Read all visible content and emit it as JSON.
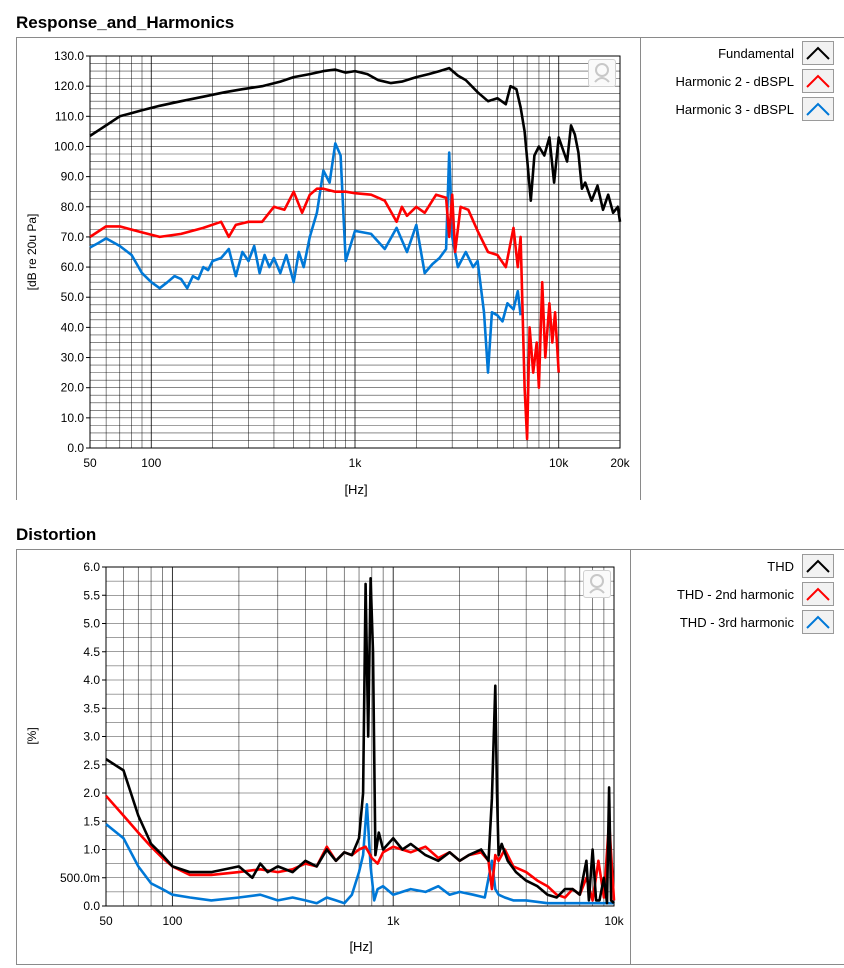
{
  "charts": {
    "response": {
      "title": "Response_and_Harmonics",
      "xlabel": "[Hz]",
      "ylabel": "[dB re 20u Pa]",
      "x_ticks": [
        "50",
        "100",
        "1k",
        "10k",
        "20k"
      ],
      "y_ticks": [
        "0.0",
        "10.0",
        "20.0",
        "30.0",
        "40.0",
        "50.0",
        "60.0",
        "70.0",
        "80.0",
        "90.0",
        "100.0",
        "110.0",
        "120.0",
        "130.0"
      ],
      "legend": [
        {
          "label": "Fundamental",
          "color": "#000000"
        },
        {
          "label": "Harmonic 2 - dBSPL",
          "color": "#ff0000"
        },
        {
          "label": "Harmonic 3 - dBSPL",
          "color": "#0078d7"
        }
      ]
    },
    "distortion": {
      "title": "Distortion",
      "xlabel": "[Hz]",
      "ylabel": "[%]",
      "x_ticks": [
        "50",
        "100",
        "1k",
        "10k"
      ],
      "y_ticks": [
        "0.0",
        "500.0m",
        "1.0",
        "1.5",
        "2.0",
        "2.5",
        "3.0",
        "3.5",
        "4.0",
        "4.5",
        "5.0",
        "5.5",
        "6.0"
      ],
      "legend": [
        {
          "label": "THD",
          "color": "#000000"
        },
        {
          "label": "THD - 2nd harmonic",
          "color": "#ff0000"
        },
        {
          "label": "THD - 3rd harmonic",
          "color": "#0078d7"
        }
      ]
    }
  },
  "chart_data": [
    {
      "type": "line",
      "title": "Response_and_Harmonics",
      "xlabel": "[Hz]",
      "ylabel": "[dB re 20u Pa]",
      "x_scale": "log",
      "xlim": [
        50,
        20000
      ],
      "ylim": [
        0,
        130
      ],
      "grid": true,
      "legend_position": "right",
      "series": [
        {
          "name": "Fundamental",
          "color": "#000000",
          "x": [
            50,
            60,
            70,
            90,
            110,
            140,
            180,
            230,
            280,
            350,
            430,
            500,
            600,
            700,
            800,
            900,
            1000,
            1150,
            1300,
            1500,
            1700,
            2000,
            2300,
            2600,
            2900,
            3200,
            3500,
            4000,
            4500,
            5000,
            5500,
            5800,
            6200,
            6500,
            6800,
            7000,
            7300,
            7600,
            8000,
            8500,
            9000,
            9500,
            10000,
            11000,
            11500,
            12000,
            12500,
            13000,
            13500,
            14500,
            15500,
            16500,
            17500,
            18500,
            19500,
            20000
          ],
          "y": [
            103.5,
            107,
            110,
            112,
            113.5,
            115,
            116.5,
            118,
            119,
            120,
            121.5,
            123,
            124,
            125,
            125.5,
            124.5,
            125,
            124,
            122,
            121,
            121.5,
            123,
            124,
            125,
            126,
            123.5,
            122,
            118,
            115,
            116,
            114,
            120,
            119,
            113,
            105,
            96,
            82,
            97,
            100,
            97,
            103,
            88,
            103,
            95,
            107,
            104,
            98,
            86,
            88,
            82,
            87,
            79,
            84,
            78,
            80,
            75
          ]
        },
        {
          "name": "Harmonic 2 - dBSPL",
          "color": "#ff0000",
          "x": [
            50,
            60,
            70,
            90,
            110,
            140,
            180,
            220,
            240,
            260,
            300,
            350,
            400,
            450,
            500,
            550,
            600,
            650,
            700,
            800,
            900,
            1000,
            1200,
            1400,
            1600,
            1700,
            1800,
            2000,
            2200,
            2500,
            2800,
            2900,
            3000,
            3100,
            3300,
            3600,
            4000,
            4500,
            5000,
            5500,
            6000,
            6300,
            6500,
            6800,
            7000,
            7200,
            7500,
            7800,
            8000,
            8300,
            8600,
            9000,
            9300,
            9600,
            10000
          ],
          "y": [
            70,
            73.5,
            73.5,
            71.5,
            70,
            71,
            73,
            75,
            70,
            74,
            75,
            75,
            80,
            79,
            85,
            78,
            84,
            86,
            86,
            85,
            85,
            84.5,
            84,
            82,
            75,
            80,
            77,
            80,
            78,
            84,
            83,
            70,
            84,
            65,
            80,
            79,
            72,
            65,
            64,
            60,
            73,
            60,
            70,
            20,
            3,
            40,
            25,
            35,
            20,
            55,
            30,
            48,
            35,
            45,
            25
          ]
        },
        {
          "name": "Harmonic 3 - dBSPL",
          "color": "#0078d7",
          "x": [
            50,
            55,
            60,
            70,
            80,
            90,
            100,
            110,
            120,
            130,
            140,
            150,
            160,
            170,
            180,
            190,
            200,
            220,
            240,
            260,
            280,
            300,
            320,
            340,
            360,
            380,
            400,
            430,
            460,
            500,
            530,
            560,
            600,
            650,
            700,
            750,
            800,
            850,
            900,
            1000,
            1200,
            1400,
            1600,
            1800,
            2000,
            2200,
            2400,
            2600,
            2800,
            2900,
            3000,
            3200,
            3500,
            3800,
            4000,
            4300,
            4500,
            4700,
            5000,
            5300,
            5600,
            6000,
            6300,
            6500
          ],
          "y": [
            66.5,
            68,
            69.5,
            67,
            64,
            58,
            55,
            53,
            55,
            57,
            56,
            53,
            57,
            56,
            60,
            59,
            62,
            63,
            66,
            57,
            65,
            62,
            67,
            58,
            64,
            60,
            63,
            58,
            64,
            55,
            65,
            60,
            70,
            78,
            92,
            88,
            101,
            97,
            62,
            72,
            71,
            66,
            73,
            65,
            74,
            58,
            61,
            63,
            66,
            98,
            70,
            60,
            65,
            60,
            62,
            45,
            25,
            45,
            44,
            42,
            48,
            46,
            52,
            44
          ]
        }
      ]
    },
    {
      "type": "line",
      "title": "Distortion",
      "xlabel": "[Hz]",
      "ylabel": "[%]",
      "x_scale": "log",
      "xlim": [
        50,
        10000
      ],
      "ylim": [
        0,
        6
      ],
      "grid": true,
      "legend_position": "right",
      "series": [
        {
          "name": "THD",
          "color": "#000000",
          "x": [
            50,
            60,
            70,
            80,
            90,
            100,
            120,
            150,
            200,
            230,
            250,
            270,
            300,
            350,
            400,
            450,
            500,
            550,
            600,
            650,
            700,
            730,
            750,
            770,
            790,
            810,
            830,
            860,
            900,
            1000,
            1100,
            1200,
            1400,
            1600,
            1800,
            2000,
            2200,
            2500,
            2700,
            2800,
            2900,
            2950,
            3000,
            3100,
            3300,
            3600,
            4000,
            4500,
            5000,
            5500,
            6000,
            6500,
            7000,
            7500,
            7700,
            8000,
            8300,
            8600,
            9000,
            9300,
            9500,
            9700,
            10000
          ],
          "y": [
            2.6,
            2.4,
            1.6,
            1.1,
            0.9,
            0.7,
            0.6,
            0.6,
            0.7,
            0.5,
            0.75,
            0.6,
            0.7,
            0.6,
            0.8,
            0.7,
            1.0,
            0.8,
            0.95,
            0.9,
            1.2,
            2.0,
            5.7,
            3.0,
            5.8,
            4.5,
            0.9,
            1.3,
            1.0,
            1.2,
            1.0,
            1.1,
            0.9,
            0.8,
            0.95,
            0.8,
            0.9,
            1.0,
            0.8,
            1.9,
            3.9,
            2.0,
            0.9,
            1.1,
            0.8,
            0.6,
            0.45,
            0.35,
            0.2,
            0.15,
            0.3,
            0.3,
            0.2,
            0.8,
            0.1,
            1.0,
            0.1,
            0.1,
            0.5,
            0.05,
            2.1,
            0.1,
            0.05
          ]
        },
        {
          "name": "THD - 2nd harmonic",
          "color": "#ff0000",
          "x": [
            50,
            60,
            70,
            80,
            90,
            100,
            120,
            150,
            200,
            250,
            300,
            350,
            400,
            450,
            500,
            550,
            600,
            650,
            700,
            750,
            800,
            850,
            900,
            1000,
            1200,
            1400,
            1600,
            1800,
            2000,
            2200,
            2500,
            2700,
            2800,
            2900,
            3000,
            3200,
            3500,
            4000,
            4500,
            5000,
            5500,
            6000,
            6500,
            7000,
            7500,
            8000,
            8500,
            9000,
            9500,
            10000
          ],
          "y": [
            1.95,
            1.6,
            1.3,
            1.05,
            0.85,
            0.7,
            0.55,
            0.55,
            0.6,
            0.65,
            0.6,
            0.65,
            0.75,
            0.7,
            1.05,
            0.8,
            0.95,
            0.9,
            1.0,
            1.05,
            0.85,
            0.75,
            0.95,
            1.05,
            0.95,
            1.05,
            0.85,
            0.95,
            0.8,
            0.9,
            0.95,
            0.8,
            0.3,
            0.9,
            0.8,
            1.0,
            0.7,
            0.6,
            0.45,
            0.35,
            0.2,
            0.15,
            0.3,
            0.2,
            0.5,
            0.1,
            0.8,
            0.15,
            1.5,
            0.1
          ]
        },
        {
          "name": "THD - 3rd harmonic",
          "color": "#0078d7",
          "x": [
            50,
            60,
            70,
            80,
            90,
            100,
            120,
            150,
            200,
            250,
            300,
            350,
            400,
            450,
            500,
            550,
            600,
            650,
            700,
            730,
            760,
            790,
            820,
            850,
            900,
            1000,
            1200,
            1400,
            1600,
            1800,
            2000,
            2300,
            2600,
            2800,
            2900,
            3000,
            3200,
            3500,
            4000,
            5000,
            6000,
            7000,
            8000,
            9000,
            10000
          ],
          "y": [
            1.45,
            1.2,
            0.7,
            0.4,
            0.3,
            0.2,
            0.15,
            0.1,
            0.15,
            0.2,
            0.1,
            0.15,
            0.1,
            0.05,
            0.15,
            0.1,
            0.05,
            0.2,
            0.6,
            0.9,
            1.8,
            0.7,
            0.1,
            0.3,
            0.35,
            0.2,
            0.3,
            0.25,
            0.35,
            0.2,
            0.25,
            0.2,
            0.15,
            0.8,
            0.3,
            0.2,
            0.15,
            0.1,
            0.1,
            0.05,
            0.05,
            0.05,
            0.05,
            0.05,
            0.05
          ]
        }
      ]
    }
  ]
}
